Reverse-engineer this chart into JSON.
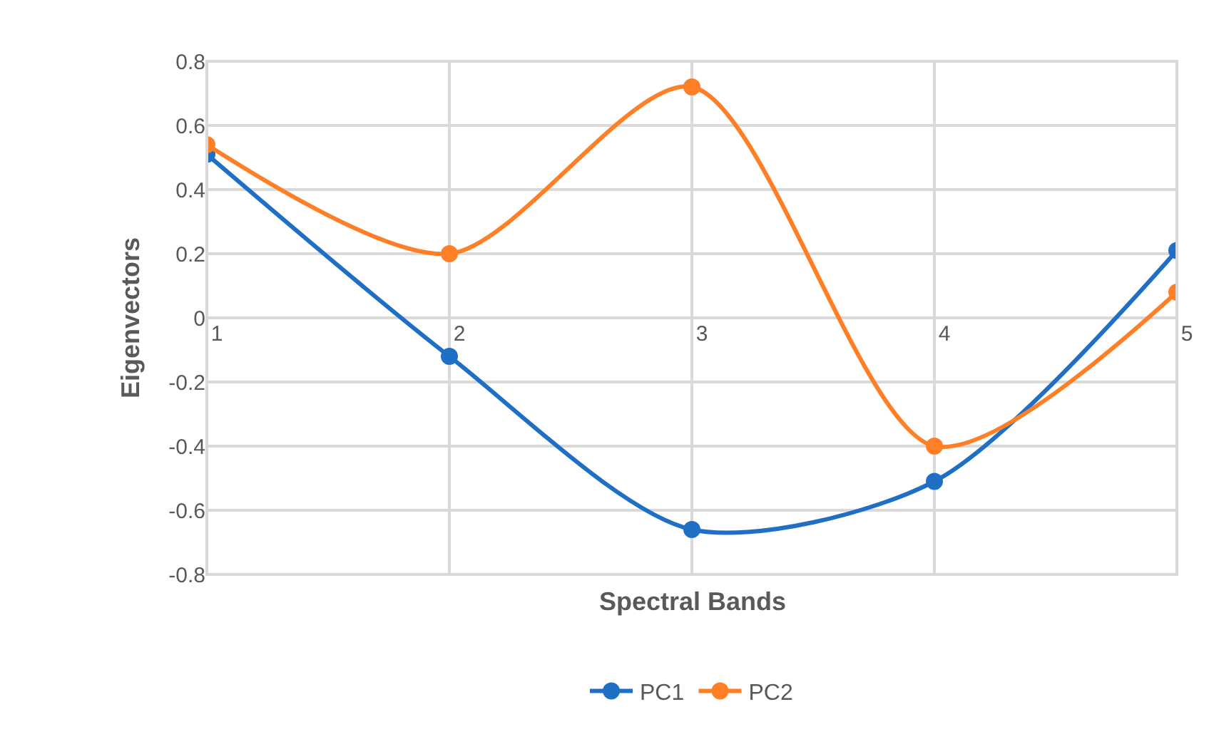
{
  "chart_data": {
    "type": "line",
    "xlabel": "Spectral Bands",
    "ylabel": "Eigenvectors",
    "categories": [
      "1",
      "2",
      "3",
      "4",
      "5"
    ],
    "series": [
      {
        "name": "PC1",
        "color": "#1f6fc5",
        "values": [
          0.51,
          -0.12,
          -0.66,
          -0.51,
          0.21
        ]
      },
      {
        "name": "PC2",
        "color": "#ff7f27",
        "values": [
          0.54,
          0.2,
          0.72,
          -0.4,
          0.08
        ]
      }
    ],
    "ylim": [
      -0.8,
      0.8
    ],
    "yticks": [
      -0.8,
      -0.6,
      -0.4,
      -0.2,
      0,
      0.2,
      0.4,
      0.6,
      0.8
    ],
    "grid": true,
    "legend": "bottom",
    "marker": "circle",
    "line_style": "solid"
  }
}
